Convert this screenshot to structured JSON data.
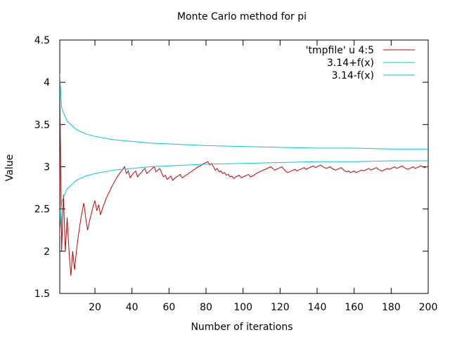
{
  "chart_data": {
    "type": "line",
    "title": "Monte Carlo method for pi",
    "xlabel": "Number of iterations",
    "ylabel": "Value",
    "xlim": [
      1,
      200
    ],
    "ylim": [
      1.5,
      4.5
    ],
    "x_ticks": [
      20,
      40,
      60,
      80,
      100,
      120,
      140,
      160,
      180,
      200
    ],
    "y_ticks": [
      1.5,
      2,
      2.5,
      3,
      3.5,
      4,
      4.5
    ],
    "x_tick_labels": [
      "20",
      "40",
      "60",
      "80",
      "100",
      "120",
      "140",
      "160",
      "180",
      "200"
    ],
    "y_tick_labels": [
      "1.5",
      "2",
      "2.5",
      "3",
      "3.5",
      "4",
      "4.5"
    ],
    "grid": false,
    "legend_position": "top-right",
    "series": [
      {
        "name": "'tmpfile' u 4:5",
        "color": "#cc0000",
        "points": [
          [
            1,
            4.0
          ],
          [
            2,
            2.0
          ],
          [
            3,
            2.67
          ],
          [
            4,
            2.0
          ],
          [
            5,
            2.4
          ],
          [
            6,
            2.0
          ],
          [
            7,
            1.71
          ],
          [
            8,
            2.0
          ],
          [
            9,
            1.78
          ],
          [
            10,
            2.0
          ],
          [
            11,
            2.18
          ],
          [
            12,
            2.33
          ],
          [
            13,
            2.46
          ],
          [
            14,
            2.57
          ],
          [
            15,
            2.4
          ],
          [
            16,
            2.25
          ],
          [
            17,
            2.35
          ],
          [
            18,
            2.44
          ],
          [
            19,
            2.53
          ],
          [
            20,
            2.6
          ],
          [
            21,
            2.48
          ],
          [
            22,
            2.55
          ],
          [
            23,
            2.43
          ],
          [
            24,
            2.5
          ],
          [
            25,
            2.56
          ],
          [
            26,
            2.62
          ],
          [
            27,
            2.67
          ],
          [
            28,
            2.71
          ],
          [
            29,
            2.76
          ],
          [
            30,
            2.8
          ],
          [
            31,
            2.84
          ],
          [
            32,
            2.88
          ],
          [
            33,
            2.91
          ],
          [
            34,
            2.94
          ],
          [
            35,
            2.97
          ],
          [
            36,
            3.0
          ],
          [
            37,
            2.92
          ],
          [
            38,
            2.95
          ],
          [
            39,
            2.87
          ],
          [
            40,
            2.9
          ],
          [
            41,
            2.93
          ],
          [
            42,
            2.95
          ],
          [
            43,
            2.88
          ],
          [
            44,
            2.91
          ],
          [
            45,
            2.93
          ],
          [
            46,
            2.96
          ],
          [
            47,
            2.98
          ],
          [
            48,
            2.92
          ],
          [
            49,
            2.94
          ],
          [
            50,
            2.96
          ],
          [
            51,
            2.98
          ],
          [
            52,
            3.0
          ],
          [
            53,
            2.94
          ],
          [
            54,
            2.96
          ],
          [
            55,
            2.98
          ],
          [
            56,
            2.93
          ],
          [
            57,
            2.88
          ],
          [
            58,
            2.9
          ],
          [
            59,
            2.85
          ],
          [
            60,
            2.87
          ],
          [
            61,
            2.89
          ],
          [
            62,
            2.84
          ],
          [
            63,
            2.86
          ],
          [
            64,
            2.88
          ],
          [
            65,
            2.89
          ],
          [
            66,
            2.91
          ],
          [
            67,
            2.87
          ],
          [
            68,
            2.88
          ],
          [
            69,
            2.9
          ],
          [
            70,
            2.91
          ],
          [
            71,
            2.93
          ],
          [
            72,
            2.94
          ],
          [
            73,
            2.96
          ],
          [
            74,
            2.97
          ],
          [
            75,
            2.99
          ],
          [
            76,
            3.0
          ],
          [
            77,
            3.01
          ],
          [
            78,
            3.03
          ],
          [
            79,
            3.04
          ],
          [
            80,
            3.05
          ],
          [
            81,
            3.06
          ],
          [
            82,
            3.02
          ],
          [
            83,
            3.04
          ],
          [
            84,
            3.0
          ],
          [
            85,
            2.96
          ],
          [
            86,
            2.98
          ],
          [
            87,
            2.94
          ],
          [
            88,
            2.95
          ],
          [
            89,
            2.92
          ],
          [
            90,
            2.93
          ],
          [
            91,
            2.9
          ],
          [
            92,
            2.91
          ],
          [
            93,
            2.88
          ],
          [
            94,
            2.89
          ],
          [
            95,
            2.86
          ],
          [
            96,
            2.88
          ],
          [
            97,
            2.89
          ],
          [
            98,
            2.9
          ],
          [
            99,
            2.87
          ],
          [
            100,
            2.88
          ],
          [
            101,
            2.89
          ],
          [
            102,
            2.9
          ],
          [
            103,
            2.91
          ],
          [
            104,
            2.88
          ],
          [
            105,
            2.89
          ],
          [
            106,
            2.9
          ],
          [
            107,
            2.92
          ],
          [
            108,
            2.93
          ],
          [
            109,
            2.94
          ],
          [
            110,
            2.95
          ],
          [
            111,
            2.96
          ],
          [
            112,
            2.97
          ],
          [
            113,
            2.98
          ],
          [
            114,
            2.99
          ],
          [
            115,
            3.0
          ],
          [
            116,
            2.98
          ],
          [
            117,
            2.96
          ],
          [
            118,
            2.97
          ],
          [
            119,
            2.98
          ],
          [
            120,
            2.99
          ],
          [
            121,
            3.0
          ],
          [
            122,
            2.97
          ],
          [
            123,
            2.95
          ],
          [
            124,
            2.93
          ],
          [
            125,
            2.94
          ],
          [
            126,
            2.95
          ],
          [
            127,
            2.96
          ],
          [
            128,
            2.97
          ],
          [
            129,
            2.95
          ],
          [
            130,
            2.96
          ],
          [
            131,
            2.97
          ],
          [
            132,
            2.98
          ],
          [
            133,
            2.99
          ],
          [
            134,
            2.97
          ],
          [
            135,
            2.98
          ],
          [
            136,
            2.99
          ],
          [
            137,
            3.0
          ],
          [
            138,
            3.01
          ],
          [
            139,
            2.99
          ],
          [
            140,
            3.0
          ],
          [
            141,
            3.01
          ],
          [
            142,
            3.02
          ],
          [
            143,
            3.0
          ],
          [
            144,
            2.99
          ],
          [
            145,
            2.98
          ],
          [
            146,
            2.99
          ],
          [
            147,
            3.0
          ],
          [
            148,
            2.98
          ],
          [
            149,
            2.97
          ],
          [
            150,
            2.96
          ],
          [
            151,
            2.97
          ],
          [
            152,
            2.98
          ],
          [
            153,
            2.99
          ],
          [
            154,
            2.97
          ],
          [
            155,
            2.95
          ],
          [
            156,
            2.94
          ],
          [
            157,
            2.95
          ],
          [
            158,
            2.93
          ],
          [
            159,
            2.94
          ],
          [
            160,
            2.95
          ],
          [
            161,
            2.93
          ],
          [
            162,
            2.94
          ],
          [
            163,
            2.95
          ],
          [
            164,
            2.96
          ],
          [
            165,
            2.95
          ],
          [
            166,
            2.96
          ],
          [
            167,
            2.97
          ],
          [
            168,
            2.98
          ],
          [
            169,
            2.96
          ],
          [
            170,
            2.97
          ],
          [
            171,
            2.98
          ],
          [
            172,
            2.99
          ],
          [
            173,
            2.97
          ],
          [
            174,
            2.96
          ],
          [
            175,
            2.95
          ],
          [
            176,
            2.96
          ],
          [
            177,
            2.97
          ],
          [
            178,
            2.98
          ],
          [
            179,
            2.97
          ],
          [
            180,
            2.98
          ],
          [
            181,
            2.99
          ],
          [
            182,
            3.0
          ],
          [
            183,
            2.98
          ],
          [
            184,
            2.99
          ],
          [
            185,
            3.0
          ],
          [
            186,
            3.01
          ],
          [
            187,
            2.99
          ],
          [
            188,
            2.98
          ],
          [
            189,
            2.97
          ],
          [
            190,
            2.98
          ],
          [
            191,
            2.99
          ],
          [
            192,
            3.0
          ],
          [
            193,
            2.98
          ],
          [
            194,
            2.99
          ],
          [
            195,
            3.0
          ],
          [
            196,
            3.01
          ],
          [
            197,
            3.0
          ],
          [
            198,
            2.99
          ],
          [
            199,
            3.0
          ],
          [
            200,
            3.0
          ]
        ]
      },
      {
        "name": "3.14+f(x)",
        "color": "#00cccc",
        "function": "upper",
        "x_range": [
          1,
          200
        ],
        "points": [
          [
            1,
            4.1
          ],
          [
            2,
            3.7
          ],
          [
            3,
            3.64
          ],
          [
            5,
            3.54
          ],
          [
            10,
            3.44
          ],
          [
            15,
            3.39
          ],
          [
            20,
            3.36
          ],
          [
            30,
            3.32
          ],
          [
            40,
            3.3
          ],
          [
            50,
            3.28
          ],
          [
            60,
            3.27
          ],
          [
            80,
            3.25
          ],
          [
            100,
            3.24
          ],
          [
            120,
            3.23
          ],
          [
            140,
            3.22
          ],
          [
            160,
            3.22
          ],
          [
            180,
            3.21
          ],
          [
            200,
            3.21
          ]
        ]
      },
      {
        "name": "3.14-f(x)",
        "color": "#00cccc",
        "function": "lower",
        "x_range": [
          1,
          200
        ],
        "points": [
          [
            1,
            2.18
          ],
          [
            2,
            2.58
          ],
          [
            3,
            2.64
          ],
          [
            5,
            2.74
          ],
          [
            10,
            2.84
          ],
          [
            15,
            2.89
          ],
          [
            20,
            2.92
          ],
          [
            30,
            2.96
          ],
          [
            40,
            2.98
          ],
          [
            50,
            3.0
          ],
          [
            60,
            3.01
          ],
          [
            80,
            3.03
          ],
          [
            100,
            3.04
          ],
          [
            120,
            3.05
          ],
          [
            140,
            3.06
          ],
          [
            160,
            3.06
          ],
          [
            180,
            3.07
          ],
          [
            200,
            3.07
          ]
        ]
      }
    ]
  }
}
